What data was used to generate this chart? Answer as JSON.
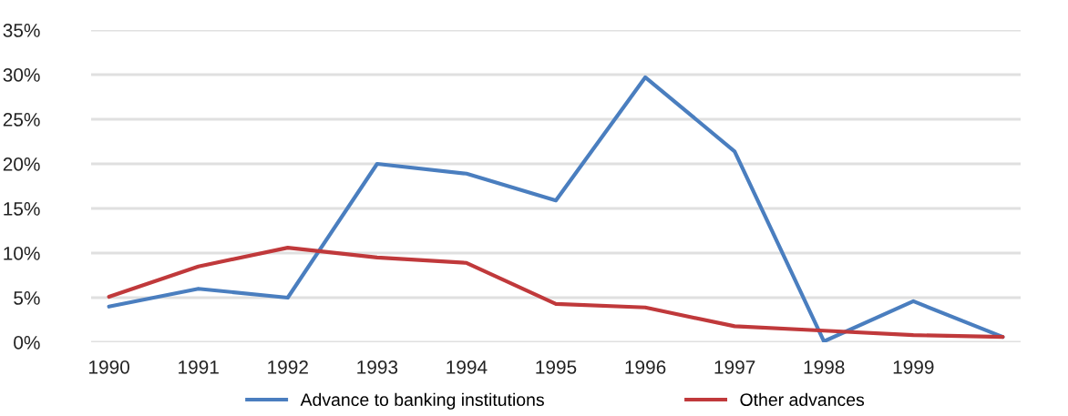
{
  "chart_data": {
    "type": "line",
    "categories": [
      "1990",
      "1991",
      "1992",
      "1993",
      "1994",
      "1995",
      "1996",
      "1997",
      "1998",
      "1999",
      null
    ],
    "series": [
      {
        "name": "Advance to banking institutions",
        "color": "#4a7ebf",
        "values": [
          4.0,
          6.0,
          5.0,
          20.0,
          18.9,
          15.9,
          29.7,
          21.4,
          0.1,
          4.6,
          0.6
        ]
      },
      {
        "name": "Other advances",
        "color": "#c0393b",
        "values": [
          5.1,
          8.5,
          10.6,
          9.5,
          8.9,
          4.3,
          3.9,
          1.8,
          1.3,
          0.8,
          0.6
        ]
      }
    ],
    "ylim": [
      0,
      35
    ],
    "yticks": [
      {
        "value": 0,
        "label": "0%"
      },
      {
        "value": 5,
        "label": "5%"
      },
      {
        "value": 10,
        "label": "10%"
      },
      {
        "value": 15,
        "label": "15%"
      },
      {
        "value": 20,
        "label": "20%"
      },
      {
        "value": 25,
        "label": "25%"
      },
      {
        "value": 30,
        "label": "30%"
      },
      {
        "value": 35,
        "label": "35%"
      }
    ],
    "grid": "y",
    "legend": "bottom",
    "line_style": "solid"
  }
}
